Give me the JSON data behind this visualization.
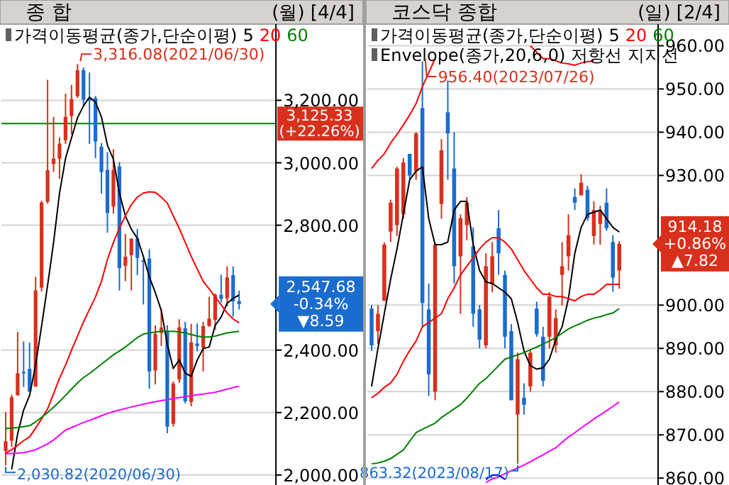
{
  "chart_data": [
    {
      "type": "candlestick",
      "title": "종    합",
      "legend_title": "가격이동평균(종가,단순이평)",
      "legend": "top",
      "grid": "y",
      "tick_labels": "y",
      "categories": [
        null,
        null,
        null,
        null,
        null,
        null,
        null,
        null,
        null,
        null,
        null,
        null,
        null,
        null,
        null,
        null,
        null,
        null,
        null,
        null,
        null,
        null,
        null,
        null,
        null,
        null,
        null,
        null,
        null,
        null,
        null,
        null,
        null,
        null,
        null,
        null,
        null,
        null,
        null,
        null
      ],
      "ohlc": [
        [
          2077,
          2201,
          2030.82,
          2108
        ],
        [
          2110,
          2257,
          2090,
          2249
        ],
        [
          2255,
          2458,
          2255,
          2326
        ],
        [
          2330,
          2428,
          2282,
          2327
        ],
        [
          2340,
          2424,
          2267,
          2267
        ],
        [
          2283,
          2635,
          2283,
          2591
        ],
        [
          2600,
          2878,
          2588,
          2873
        ],
        [
          2875,
          3266,
          2869,
          2976
        ],
        [
          2996,
          3147,
          2971,
          3013
        ],
        [
          3013,
          3081,
          2949,
          3061
        ],
        [
          3072,
          3221,
          3060,
          3147
        ],
        [
          3150,
          3249,
          3091,
          3204
        ],
        [
          3213,
          3316.08,
          3208,
          3296
        ],
        [
          3297,
          3305,
          3181,
          3202
        ],
        [
          3207,
          3289,
          3060,
          3199
        ],
        [
          3207,
          3214,
          3015,
          3068
        ],
        [
          3051,
          3063,
          2901,
          2970
        ],
        [
          2977,
          3034,
          2776,
          2839
        ],
        [
          2860,
          3043,
          2837,
          2977
        ],
        [
          2988,
          3002,
          2591,
          2663
        ],
        [
          2670,
          2772,
          2621,
          2699
        ],
        [
          2704,
          2758,
          2591,
          2757
        ],
        [
          2758,
          2788,
          2640,
          2695
        ],
        [
          2687,
          2693,
          2546,
          2685
        ],
        [
          2693,
          2723,
          2276,
          2332
        ],
        [
          2335,
          2479,
          2290,
          2452
        ],
        [
          2455,
          2532,
          2413,
          2472
        ],
        [
          2458,
          2480,
          2134,
          2155
        ],
        [
          2164,
          2300,
          2155,
          2293
        ],
        [
          2306,
          2499,
          2295,
          2473
        ],
        [
          2470,
          2490,
          2229,
          2236
        ],
        [
          2234,
          2484,
          2220,
          2425
        ],
        [
          2421,
          2485,
          2396,
          2413
        ],
        [
          2408,
          2491,
          2332,
          2477
        ],
        [
          2477,
          2571,
          2475,
          2501
        ],
        [
          2497,
          2581,
          2465,
          2577
        ],
        [
          2577,
          2641,
          2553,
          2564
        ],
        [
          2566,
          2668,
          2540,
          2633
        ],
        [
          2640,
          2668,
          2507,
          2556.27
        ],
        [
          2557,
          2590,
          2530,
          2547.68
        ]
      ],
      "series": [
        {
          "name": "5",
          "type": "line",
          "color": "#000000",
          "values": [
            null,
            2018,
            2132,
            2208,
            2255,
            2352,
            2477,
            2607,
            2744,
            2903,
            3014,
            3080,
            3144,
            3182,
            3210,
            3194,
            3147,
            3056,
            3011,
            2903,
            2830,
            2787,
            2758,
            2700,
            2634,
            2584,
            2527,
            2419,
            2341,
            2369,
            2326,
            2316,
            2368,
            2405,
            2410,
            2479,
            2506,
            2550,
            2566,
            2576
          ]
        },
        {
          "name": "20",
          "type": "line",
          "color": "#ff0000",
          "values": [
            2070,
            2081,
            2095,
            2110,
            2122,
            2150,
            2180,
            2212,
            2260,
            2310,
            2352,
            2400,
            2445,
            2490,
            2530,
            2570,
            2620,
            2690,
            2745,
            2790,
            2830,
            2866,
            2890,
            2903,
            2907,
            2905,
            2890,
            2871,
            2830,
            2790,
            2745,
            2700,
            2660,
            2620,
            2596,
            2570,
            2545,
            2519,
            2500,
            2487
          ]
        },
        {
          "name": "60",
          "type": "line",
          "color": "#008000",
          "values": [
            2149,
            2150,
            2152,
            2155,
            2158,
            2170,
            2185,
            2200,
            2217,
            2235,
            2255,
            2275,
            2295,
            2312,
            2325,
            2340,
            2355,
            2370,
            2385,
            2397,
            2410,
            2425,
            2440,
            2451,
            2455,
            2458,
            2460,
            2460,
            2460,
            2458,
            2455,
            2450,
            2445,
            2442,
            2442,
            2445,
            2450,
            2455,
            2458,
            2460
          ]
        },
        {
          "type": "line",
          "color": "#ff00ff",
          "values": [
            2068,
            2069,
            2070,
            2072,
            2076,
            2081,
            2090,
            2100,
            2112,
            2128,
            2144,
            2152,
            2160,
            2168,
            2175,
            2182,
            2190,
            2197,
            2203,
            2208,
            2213,
            2218,
            2222,
            2227,
            2231,
            2235,
            2238,
            2241,
            2245,
            2248,
            2251,
            2254,
            2257,
            2259,
            2262,
            2265,
            2270,
            2275,
            2280,
            2284
          ]
        }
      ],
      "ylim": [
        1968,
        3444
      ],
      "yticks": [
        {
          "value": 2000,
          "label": "2,000.00"
        },
        {
          "value": 2200,
          "label": "2,200.00"
        },
        {
          "value": 2400,
          "label": "2,400.00"
        },
        {
          "value": 2800,
          "label": "2,800.00"
        },
        {
          "value": 3000,
          "label": "3,000.00"
        },
        {
          "value": 3200,
          "label": "3,200.00"
        }
      ],
      "ref_lines": [
        {
          "axis": "y",
          "value": 3125.33,
          "label": "3,125.33\n(+22.26%)",
          "color": "#008000"
        }
      ],
      "annotations": [
        "(월) [4/4]",
        "3,316.08(2021/06/30)",
        "2,030.82(2020/06/30)",
        "2,547.68\n-0.34%\n▼8.59"
      ]
    },
    {
      "type": "candlestick",
      "title": "코스닥 종합",
      "legend_title": "가격이동평균(종가,단순이평)",
      "subtitle": "Envelope(종가,20,6,0) 저항선 지지선",
      "legend": "top",
      "grid": "y",
      "tick_labels": "y",
      "categories": [
        null,
        null,
        null,
        null,
        null,
        null,
        null,
        null,
        null,
        null,
        null,
        null,
        null,
        null,
        null,
        null,
        null,
        null,
        null,
        null,
        null,
        null,
        null,
        null,
        null,
        null,
        null,
        null,
        null,
        null,
        null,
        null,
        null,
        null,
        null,
        null,
        null,
        null,
        null,
        null
      ],
      "ohlc": [
        [
          899.2,
          900,
          889.4,
          890.7
        ],
        [
          894,
          900,
          891,
          898
        ],
        [
          901,
          914.5,
          901,
          914
        ],
        [
          917,
          924.4,
          914.6,
          923.7
        ],
        [
          918.5,
          932,
          916,
          931.6
        ],
        [
          921,
          934,
          920,
          933
        ],
        [
          935,
          935,
          929,
          930
        ],
        [
          931,
          940,
          929,
          939.7
        ],
        [
          945.6,
          956.4,
          895,
          900.5
        ],
        [
          899,
          905,
          879,
          884
        ],
        [
          880,
          914.5,
          878,
          914
        ],
        [
          923.4,
          938.4,
          920,
          935.8
        ],
        [
          944.6,
          952,
          929,
          939.7
        ],
        [
          931.6,
          940,
          905,
          909
        ],
        [
          911.3,
          921,
          898,
          920.1
        ],
        [
          918.5,
          925,
          915,
          923.7
        ],
        [
          913.6,
          918,
          895,
          898
        ],
        [
          899,
          900,
          890,
          892
        ],
        [
          890.7,
          912,
          890,
          909
        ],
        [
          904.8,
          914.6,
          903,
          911.3
        ],
        [
          917.8,
          922,
          907,
          912
        ],
        [
          907,
          908,
          890,
          892.7
        ],
        [
          894,
          895.6,
          878,
          878
        ],
        [
          874.7,
          889,
          863.32,
          887.5
        ],
        [
          878.6,
          881.9,
          874.7,
          877
        ],
        [
          881.2,
          889.7,
          880,
          889
        ],
        [
          899.2,
          900.8,
          892.7,
          893.3
        ],
        [
          892.7,
          895,
          881.2,
          882.5
        ],
        [
          892.7,
          903,
          890,
          902
        ],
        [
          890.7,
          899,
          889,
          897
        ],
        [
          907,
          914.6,
          899.9,
          909
        ],
        [
          911.3,
          921,
          908,
          916.2
        ],
        [
          925,
          927,
          922,
          923.7
        ],
        [
          925.4,
          930.3,
          925.4,
          928.3
        ],
        [
          926.7,
          927.6,
          919.5,
          920.1
        ],
        [
          916,
          924,
          914,
          922
        ],
        [
          918.8,
          923,
          914,
          921.8
        ],
        [
          923.7,
          927,
          917.2,
          917.8
        ],
        [
          914.6,
          916.2,
          903.1,
          906.36
        ],
        [
          908,
          914.8,
          903.8,
          914.18
        ]
      ],
      "series": [
        {
          "name": "5",
          "type": "line",
          "color": "#000000",
          "values": [
            881.2,
            890,
            898,
            906,
            913,
            921,
            929,
            931,
            932,
            920,
            914,
            914,
            914.6,
            922,
            924,
            924,
            914,
            908,
            905.4,
            905,
            904,
            903,
            901.5,
            896,
            889.4,
            886,
            885.2,
            885.5,
            887.5,
            892,
            895,
            901.5,
            912,
            918,
            921,
            921.5,
            922,
            920,
            918,
            916.9
          ]
        },
        {
          "name": "20",
          "type": "line",
          "color": "#ff0000",
          "values": [
            878.6,
            879.6,
            881,
            882,
            884,
            887,
            889.5,
            891.7,
            895,
            896,
            897,
            898,
            901.5,
            904,
            907,
            909,
            911,
            913,
            914.6,
            915.6,
            915.6,
            914.6,
            913,
            910.5,
            908,
            906,
            904,
            902.5,
            902.5,
            902,
            902,
            901.5,
            901,
            902,
            902.5,
            902.5,
            903.5,
            904.8,
            904.8,
            904.8
          ]
        },
        {
          "name": "60",
          "type": "line",
          "color": "#008000",
          "values": [
            863.3,
            863.5,
            863.9,
            864.5,
            865.5,
            866.5,
            868.5,
            870.5,
            871.3,
            872,
            872.7,
            874,
            875,
            876,
            877,
            878.5,
            880.2,
            881.9,
            883,
            884.5,
            886,
            887.5,
            888,
            888.5,
            889,
            889.7,
            890.3,
            891,
            891.7,
            892.5,
            893.5,
            894.5,
            895.2,
            895.8,
            896.5,
            897,
            897.3,
            897.8,
            898.2,
            899.2
          ]
        },
        {
          "type": "line",
          "color": "#ff00ff",
          "values": [
            null,
            null,
            null,
            null,
            null,
            null,
            null,
            null,
            null,
            null,
            null,
            null,
            null,
            null,
            null,
            null,
            null,
            null,
            859,
            859.8,
            860.3,
            861,
            861.7,
            862.3,
            863,
            863.8,
            864.6,
            865.4,
            866.2,
            867,
            868.3,
            869.5,
            870.5,
            871.6,
            872.6,
            873.7,
            874.6,
            875.6,
            876.6,
            877.6
          ]
        },
        {
          "type": "line",
          "color": "#ff0000",
          "values": [
            931.6,
            933.5,
            935,
            937.5,
            939.5,
            941.7,
            944,
            946.6,
            950.5,
            953.8,
            957,
            null,
            null,
            null,
            null,
            null,
            null,
            null,
            null,
            null,
            null,
            null,
            null,
            null,
            null,
            960,
            958.5,
            957,
            957,
            956.5,
            956,
            955.8,
            955.5,
            956,
            956.3,
            956.5,
            null,
            null,
            null,
            null
          ]
        },
        {
          "type": "line",
          "color": "#0000ff",
          "values": [
            null,
            null,
            null,
            null,
            null,
            null,
            null,
            null,
            null,
            null,
            null,
            null,
            null,
            null,
            null,
            null,
            null,
            null,
            859.7,
            860.7,
            860.7,
            859.7,
            null,
            null,
            null,
            null,
            null,
            null,
            null,
            null,
            null,
            null,
            null,
            null,
            null,
            null,
            null,
            null,
            null,
            null
          ]
        }
      ],
      "ylim": [
        858.4,
        965
      ],
      "yticks": [
        {
          "value": 860,
          "label": "860.00"
        },
        {
          "value": 870,
          "label": "870.00"
        },
        {
          "value": 880,
          "label": "880.00"
        },
        {
          "value": 890,
          "label": "890.00"
        },
        {
          "value": 900,
          "label": "900.00"
        },
        {
          "value": 930,
          "label": "930.00"
        },
        {
          "value": 940,
          "label": "940.00"
        },
        {
          "value": 950,
          "label": "950.00"
        },
        {
          "value": 960,
          "label": "960.00"
        }
      ],
      "annotations": [
        "(일) [2/4]",
        "956.40(2023/07/26)",
        "863.32(2023/08/17)",
        "914.18\n+0.86%\n▲7.82"
      ]
    }
  ]
}
